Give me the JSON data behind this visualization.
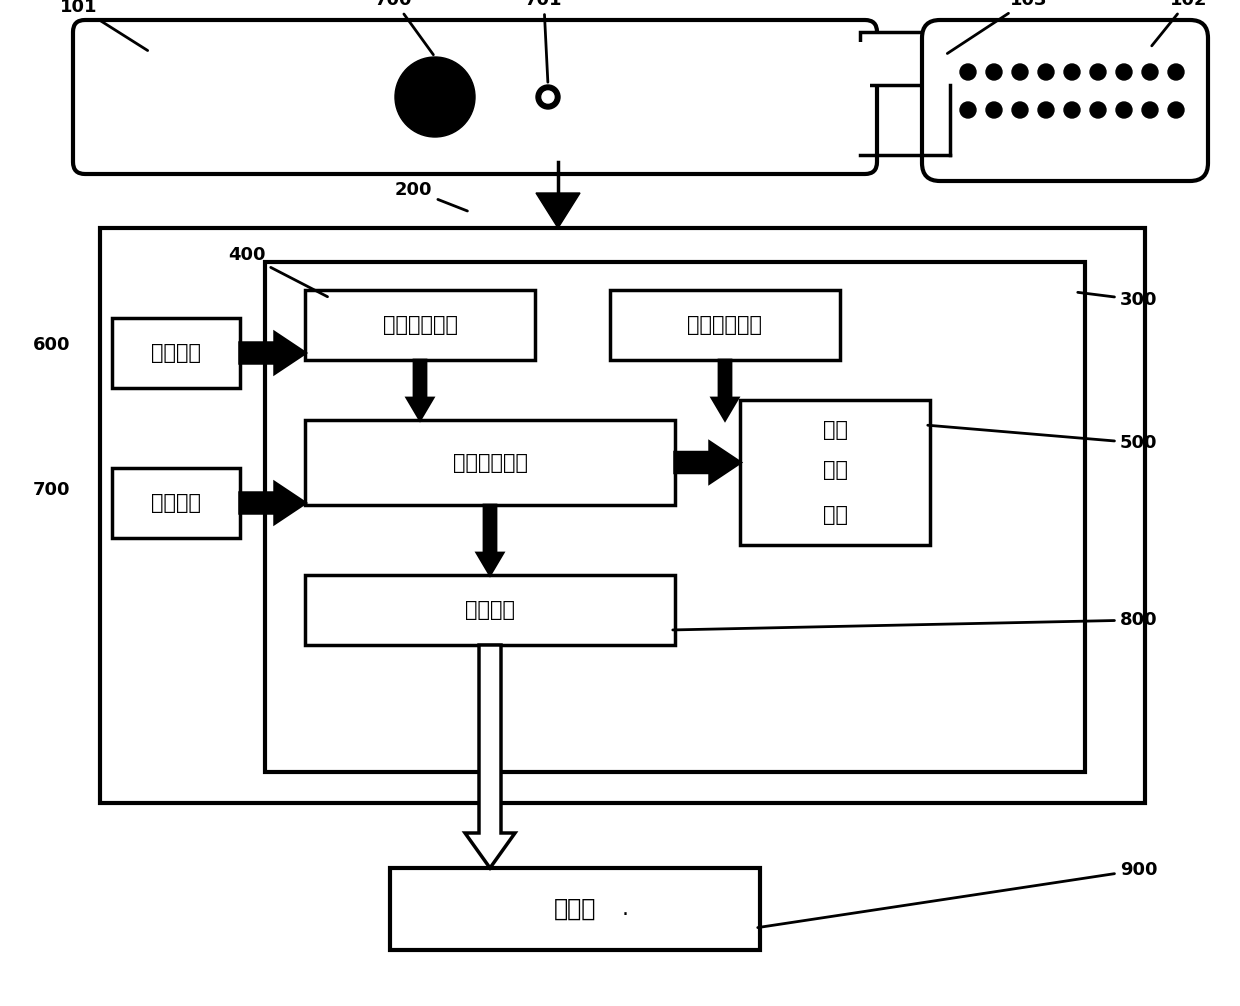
{
  "fig_width": 12.4,
  "fig_height": 10.06,
  "bg_color": "#ffffff",
  "labels": {
    "pressure": "压力检测装置",
    "state": "状态检测装置",
    "data_proc": "数据处理装置",
    "sound_line1": "声音",
    "sound_line2": "反馈",
    "sound_line3": "装置",
    "comm": "通信装置",
    "power": "电源装置",
    "switch": "开关器件",
    "monitor": "监控端"
  },
  "ref_fontsize": 13,
  "label_fontsize": 15
}
